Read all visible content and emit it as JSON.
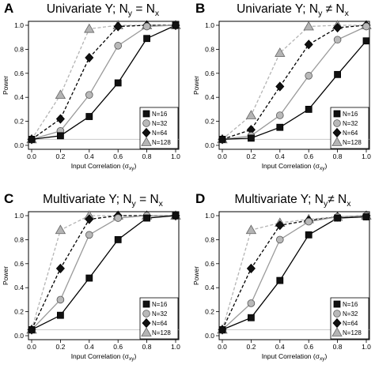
{
  "chart_data": [
    {
      "type": "line",
      "letter": "A",
      "title_parts": [
        "Univariate Y; N",
        "y",
        " = N",
        "x"
      ],
      "xlabel_parts": [
        "Input Correlation (σ",
        "xy",
        ")"
      ],
      "ylabel": "Power",
      "x": [
        0.0,
        0.2,
        0.4,
        0.6,
        0.8,
        1.0
      ],
      "xlim": [
        0,
        1
      ],
      "ylim": [
        0,
        1
      ],
      "xticks": [
        "0.0",
        "0.2",
        "0.4",
        "0.6",
        "0.8",
        "1.0"
      ],
      "yticks": [
        "0.0",
        "0.2",
        "0.4",
        "0.6",
        "0.8",
        "1.0"
      ],
      "reference_line": 0.05,
      "legend_position": "bottom-right",
      "series": [
        {
          "name": "N=16",
          "values": [
            0.05,
            0.08,
            0.24,
            0.52,
            0.89,
            1.0
          ]
        },
        {
          "name": "N=32",
          "values": [
            0.05,
            0.12,
            0.42,
            0.83,
            0.99,
            1.0
          ]
        },
        {
          "name": "N=64",
          "values": [
            0.05,
            0.22,
            0.73,
            0.99,
            1.0,
            1.0
          ]
        },
        {
          "name": "N=128",
          "values": [
            0.05,
            0.42,
            0.97,
            1.0,
            1.0,
            1.0
          ]
        }
      ]
    },
    {
      "type": "line",
      "letter": "B",
      "title_parts": [
        "Univariate Y; N",
        "y",
        " ≠ N",
        "x"
      ],
      "xlabel_parts": [
        "Input Correlation (σ",
        "xy",
        ")"
      ],
      "ylabel": "Power",
      "x": [
        0.0,
        0.2,
        0.4,
        0.6,
        0.8,
        1.0
      ],
      "xlim": [
        0,
        1
      ],
      "ylim": [
        0,
        1
      ],
      "xticks": [
        "0.0",
        "0.2",
        "0.4",
        "0.6",
        "0.8",
        "1.0"
      ],
      "yticks": [
        "0.0",
        "0.2",
        "0.4",
        "0.6",
        "0.8",
        "1.0"
      ],
      "reference_line": 0.05,
      "legend_position": "bottom-right",
      "series": [
        {
          "name": "N=16",
          "values": [
            0.05,
            0.06,
            0.15,
            0.3,
            0.59,
            0.87
          ]
        },
        {
          "name": "N=32",
          "values": [
            0.05,
            0.08,
            0.25,
            0.58,
            0.88,
            0.99
          ]
        },
        {
          "name": "N=64",
          "values": [
            0.05,
            0.13,
            0.49,
            0.84,
            0.98,
            1.0
          ]
        },
        {
          "name": "N=128",
          "values": [
            0.05,
            0.25,
            0.77,
            0.99,
            1.0,
            1.0
          ]
        }
      ]
    },
    {
      "type": "line",
      "letter": "C",
      "title_parts": [
        "Multivariate Y; N",
        "y",
        " = N",
        "x"
      ],
      "xlabel_parts": [
        "Input Correlation (σ",
        "xy",
        ")"
      ],
      "ylabel": "Power",
      "x": [
        0.0,
        0.2,
        0.4,
        0.6,
        0.8,
        1.0
      ],
      "xlim": [
        0,
        1
      ],
      "ylim": [
        0,
        1
      ],
      "xticks": [
        "0.0",
        "0.2",
        "0.4",
        "0.6",
        "0.8",
        "1.0"
      ],
      "yticks": [
        "0.0",
        "0.2",
        "0.4",
        "0.6",
        "0.8",
        "1.0"
      ],
      "reference_line": 0.05,
      "legend_position": "bottom-right",
      "series": [
        {
          "name": "N=16",
          "values": [
            0.05,
            0.17,
            0.48,
            0.8,
            0.98,
            1.0
          ]
        },
        {
          "name": "N=32",
          "values": [
            0.05,
            0.3,
            0.84,
            0.98,
            1.0,
            1.0
          ]
        },
        {
          "name": "N=64",
          "values": [
            0.05,
            0.56,
            0.97,
            1.0,
            1.0,
            1.0
          ]
        },
        {
          "name": "N=128",
          "values": [
            0.05,
            0.88,
            1.0,
            1.0,
            1.0,
            1.0
          ]
        }
      ]
    },
    {
      "type": "line",
      "letter": "D",
      "title_parts": [
        "Multivariate Y; N",
        "y",
        "≠ N",
        "x"
      ],
      "xlabel_parts": [
        "Input Correlation (σ",
        "xy",
        ")"
      ],
      "ylabel": "Power",
      "x": [
        0.0,
        0.2,
        0.4,
        0.6,
        0.8,
        1.0
      ],
      "xlim": [
        0,
        1
      ],
      "ylim": [
        0,
        1
      ],
      "xticks": [
        "0.0",
        "0.2",
        "0.4",
        "0.6",
        "0.8",
        "1.0"
      ],
      "yticks": [
        "0.0",
        "0.2",
        "0.4",
        "0.6",
        "0.8",
        "1.0"
      ],
      "reference_line": 0.05,
      "legend_position": "bottom-right",
      "series": [
        {
          "name": "N=16",
          "values": [
            0.05,
            0.15,
            0.46,
            0.84,
            0.98,
            0.99
          ]
        },
        {
          "name": "N=32",
          "values": [
            0.05,
            0.27,
            0.8,
            0.95,
            0.99,
            1.0
          ]
        },
        {
          "name": "N=64",
          "values": [
            0.05,
            0.56,
            0.92,
            0.96,
            0.99,
            1.0
          ]
        },
        {
          "name": "N=128",
          "values": [
            0.05,
            0.88,
            0.94,
            0.97,
            0.99,
            1.0
          ]
        }
      ]
    }
  ],
  "styles": {
    "series_colors": [
      "#000000",
      "#9a9a9a",
      "#000000",
      "#b4b4b4"
    ],
    "series_markers": [
      "square",
      "circle",
      "diamond",
      "triangle"
    ],
    "series_dashed": [
      false,
      false,
      true,
      true
    ],
    "marker_fill": [
      "#111111",
      "#b9b9b9",
      "#111111",
      "#b4b4b4"
    ],
    "reference_line_color": "#c8c8c8"
  }
}
